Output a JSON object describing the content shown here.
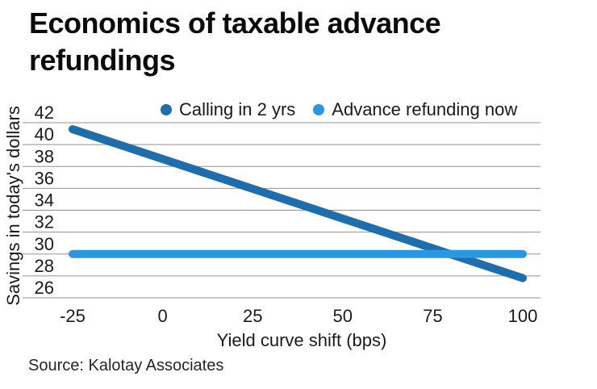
{
  "title": "Economics of taxable advance refundings",
  "source": "Source: Kalotay Associates",
  "colors": {
    "series_dark_blue": "#1f6dab",
    "series_light_blue": "#2b97e2",
    "gridline_gray": "#909090",
    "text_dark": "#1a1a1a",
    "title_black": "#0b0b0b"
  },
  "legend": {
    "items": [
      {
        "label": "Calling in 2 yrs",
        "color": "#1f6dab"
      },
      {
        "label": "Advance refunding now",
        "color": "#2b97e2"
      }
    ]
  },
  "chart_data": {
    "type": "line",
    "title": "Economics of taxable advance refundings",
    "xlabel": "Yield curve shift (bps)",
    "ylabel": "Savings in today's dollars",
    "xlim": [
      -25,
      100
    ],
    "ylim": [
      26,
      42
    ],
    "x_ticks": [
      -25,
      0,
      25,
      50,
      75,
      100
    ],
    "y_ticks": [
      42,
      40,
      38,
      36,
      34,
      32,
      30,
      28,
      26
    ],
    "grid": "horizontal",
    "grid_color": "#909090",
    "legend_position": "top",
    "line_width": 10,
    "series": [
      {
        "name": "Calling in 2 yrs",
        "color": "#1f6dab",
        "x": [
          -25,
          100
        ],
        "y": [
          41.4,
          27.8
        ]
      },
      {
        "name": "Advance refunding now",
        "color": "#2b97e2",
        "x": [
          -25,
          100
        ],
        "y": [
          30.0,
          30.0
        ]
      }
    ]
  }
}
